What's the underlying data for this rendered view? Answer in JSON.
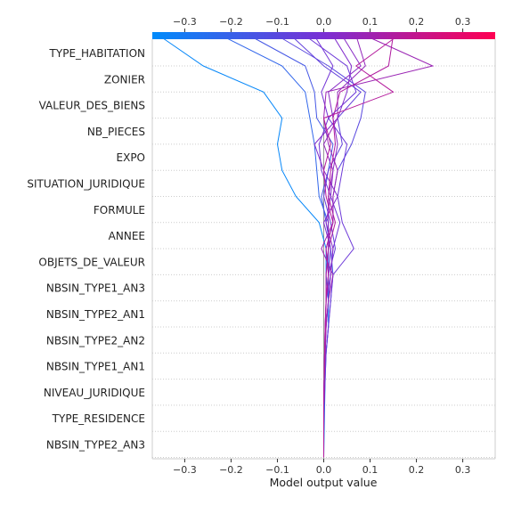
{
  "chart_data": {
    "type": "line",
    "xlabel": "Model output value",
    "ylabel": "",
    "xlim": [
      -0.37,
      0.37
    ],
    "x_ticks": [
      "−0.3",
      "−0.2",
      "−0.1",
      "0.0",
      "0.1",
      "0.2",
      "0.3"
    ],
    "x_tick_values": [
      -0.3,
      -0.2,
      -0.1,
      0.0,
      0.1,
      0.2,
      0.3
    ],
    "base_value": 0.0,
    "colormap": {
      "low": "#008bfb",
      "high": "#ff0052"
    },
    "features": [
      "TYPE_HABITATION",
      "ZONIER",
      "VALEUR_DES_BIENS",
      "NB_PIECES",
      "EXPO",
      "SITUATION_JURIDIQUE",
      "FORMULE",
      "ANNEE",
      "OBJETS_DE_VALEUR",
      "NBSIN_TYPE1_AN3",
      "NBSIN_TYPE2_AN1",
      "NBSIN_TYPE2_AN2",
      "NBSIN_TYPE1_AN1",
      "NIVEAU_JURIDIQUE",
      "TYPE_RESIDENCE",
      "NBSIN_TYPE2_AN3"
    ],
    "series": [
      {
        "values": [
          -0.355,
          -0.26,
          -0.13,
          -0.09,
          -0.1,
          -0.09,
          -0.06,
          -0.01,
          0.005,
          0.005,
          0.01,
          0.01,
          0.005,
          0.003,
          0.002,
          0.001,
          0.0
        ]
      },
      {
        "values": [
          -0.22,
          -0.09,
          -0.04,
          -0.03,
          -0.02,
          -0.015,
          -0.01,
          0.01,
          0.01,
          0.01,
          0.01,
          0.005,
          0.003,
          0.002,
          0.001,
          0.0,
          0.0
        ]
      },
      {
        "values": [
          -0.16,
          -0.04,
          -0.02,
          -0.015,
          0.02,
          0.01,
          -0.005,
          0.005,
          0.015,
          0.02,
          0.015,
          0.01,
          0.005,
          0.002,
          0.001,
          0.0,
          0.0
        ]
      },
      {
        "values": [
          -0.1,
          0.01,
          0.09,
          0.08,
          0.06,
          0.03,
          0.02,
          0.02,
          0.005,
          0.01,
          0.005,
          0.004,
          0.002,
          0.001,
          0.0,
          0.0,
          0.0
        ]
      },
      {
        "values": [
          -0.07,
          0.0,
          0.08,
          0.03,
          0.04,
          0.01,
          0.0,
          0.015,
          0.025,
          0.01,
          0.005,
          0.004,
          0.002,
          0.001,
          0.0,
          0.0,
          0.0
        ]
      },
      {
        "values": [
          -0.04,
          0.05,
          0.07,
          0.01,
          0.05,
          0.04,
          0.03,
          0.04,
          0.065,
          0.02,
          0.015,
          0.01,
          0.005,
          0.003,
          0.001,
          0.0,
          0.0
        ]
      },
      {
        "values": [
          -0.02,
          0.02,
          -0.005,
          0.01,
          -0.01,
          -0.005,
          0.015,
          0.035,
          0.02,
          0.015,
          0.01,
          0.005,
          0.003,
          0.001,
          0.0,
          0.0,
          0.0
        ]
      },
      {
        "values": [
          0.02,
          0.06,
          0.05,
          0.03,
          -0.02,
          0.0,
          0.03,
          0.0,
          0.015,
          0.01,
          0.005,
          0.004,
          0.002,
          0.001,
          0.0,
          0.0,
          0.0
        ]
      },
      {
        "values": [
          0.04,
          0.08,
          0.01,
          0.02,
          0.03,
          0.02,
          0.015,
          0.005,
          0.02,
          0.015,
          0.005,
          0.003,
          0.002,
          0.001,
          0.0,
          0.0,
          0.0
        ]
      },
      {
        "values": [
          0.07,
          0.09,
          0.03,
          0.03,
          0.0,
          0.02,
          0.01,
          0.01,
          0.01,
          0.005,
          0.005,
          0.003,
          0.002,
          0.001,
          0.0,
          0.0,
          0.0
        ]
      },
      {
        "values": [
          0.09,
          0.235,
          0.005,
          0.0,
          0.01,
          0.03,
          0.02,
          0.02,
          -0.005,
          0.02,
          0.01,
          0.005,
          0.003,
          0.001,
          0.0,
          0.0,
          0.0
        ]
      },
      {
        "values": [
          0.15,
          0.14,
          0.035,
          0.02,
          0.025,
          0.015,
          0.01,
          0.025,
          0.01,
          0.005,
          0.005,
          0.004,
          0.002,
          0.001,
          0.0,
          0.0,
          0.0
        ]
      },
      {
        "values": [
          0.16,
          0.07,
          0.15,
          0.0,
          0.015,
          0.0,
          0.005,
          0.02,
          0.005,
          0.01,
          0.005,
          0.003,
          0.002,
          0.001,
          0.0,
          0.0,
          0.0
        ]
      }
    ]
  }
}
